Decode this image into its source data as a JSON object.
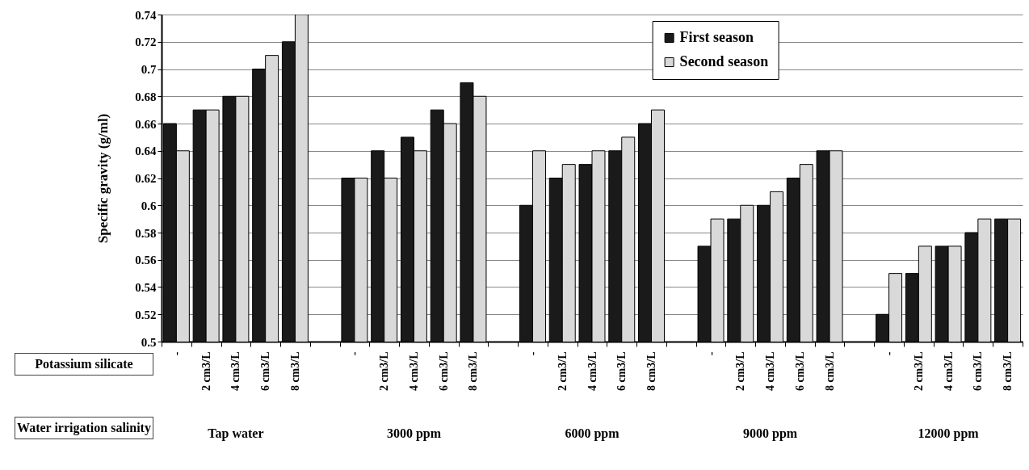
{
  "chart_data": {
    "type": "bar",
    "ylabel": "Specific gravity (g/ml)",
    "categories": [
      "-",
      "2 cm3/L",
      "4 cm3/L",
      "6 cm3/L",
      "8 cm3/L",
      null,
      "-",
      "2 cm3/L",
      "4 cm3/L",
      "6 cm3/L",
      "8 cm3/L",
      null,
      "-",
      "2 cm3/L",
      "4 cm3/L",
      "6 cm3/L",
      "8 cm3/L",
      null,
      "-",
      "2 cm3/L",
      "4 cm3/L",
      "6 cm3/L",
      "8 cm3/L",
      null,
      "-",
      "2 cm3/L",
      "4 cm3/L",
      "6 cm3/L",
      "8 cm3/L"
    ],
    "series": [
      {
        "name": "First season",
        "color": "#1a1a1a",
        "values": [
          0.66,
          0.67,
          0.68,
          0.7,
          0.72,
          null,
          0.62,
          0.64,
          0.65,
          0.67,
          0.69,
          null,
          0.6,
          0.62,
          0.63,
          0.64,
          0.66,
          null,
          0.57,
          0.59,
          0.6,
          0.62,
          0.64,
          null,
          0.52,
          0.55,
          0.57,
          0.58,
          0.59
        ]
      },
      {
        "name": "Second season",
        "color": "#d9d9d9",
        "values": [
          0.64,
          0.67,
          0.68,
          0.71,
          0.74,
          null,
          0.62,
          0.62,
          0.64,
          0.66,
          0.68,
          null,
          0.64,
          0.63,
          0.64,
          0.65,
          0.67,
          null,
          0.59,
          0.6,
          0.61,
          0.63,
          0.64,
          null,
          0.55,
          0.57,
          0.57,
          0.59,
          0.59
        ]
      }
    ],
    "ylim": [
      0.5,
      0.74
    ],
    "yticks": [
      0.5,
      0.52,
      0.54,
      0.56,
      0.58,
      0.6,
      0.62,
      0.64,
      0.66,
      0.68,
      0.7,
      0.72,
      0.74
    ],
    "grid": "y",
    "legend": "top",
    "annotations": [
      "Potassium silicate",
      "Water irrigation salinity",
      "Tap water",
      "3000 ppm",
      "6000 ppm",
      "9000 ppm",
      "12000 ppm"
    ]
  }
}
